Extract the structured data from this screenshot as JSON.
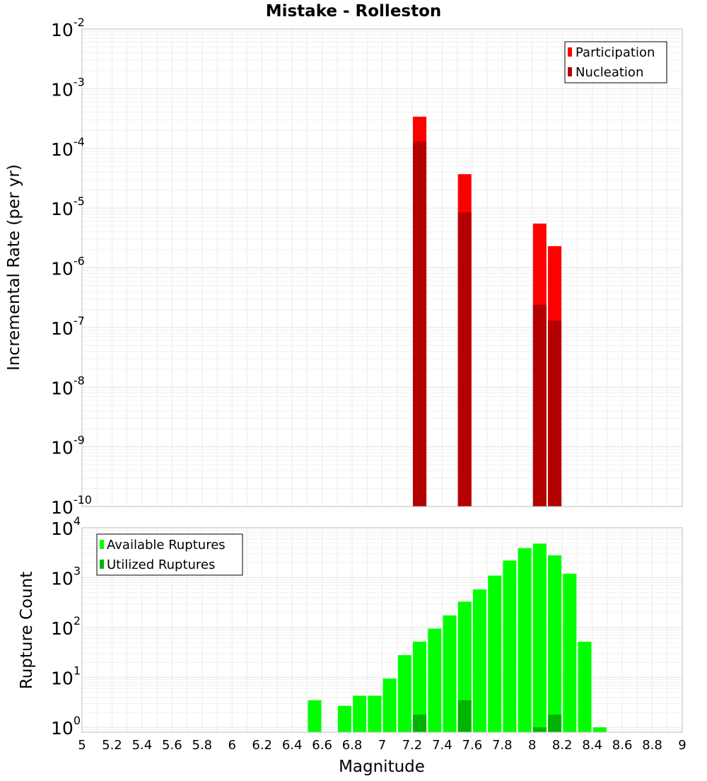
{
  "chart_data": [
    {
      "type": "bar",
      "title": "Mistake - Rolleston",
      "ylabel": "Incremental Rate (per yr)",
      "yscale": "log",
      "ylim": [
        1e-10,
        0.01
      ],
      "xlim": [
        5,
        9
      ],
      "grid": true,
      "legend_position": "top-right",
      "series": [
        {
          "name": "Participation",
          "color": "#ff0000",
          "x": [
            7.25,
            7.55,
            8.05,
            8.15
          ],
          "values": [
            0.00034,
            3.7e-05,
            5.5e-06,
            2.3e-06
          ]
        },
        {
          "name": "Nucleation",
          "color": "#b30000",
          "x": [
            7.25,
            7.55,
            8.05,
            8.15
          ],
          "values": [
            0.00013,
            8.5e-06,
            2.4e-07,
            1.3e-07
          ]
        }
      ]
    },
    {
      "type": "bar",
      "xlabel": "Magnitude",
      "ylabel": "Rupture Count",
      "yscale": "log",
      "ylim": [
        0.8,
        10000
      ],
      "xlim": [
        5,
        9
      ],
      "grid": true,
      "legend_position": "top-left",
      "series": [
        {
          "name": "Available Ruptures",
          "color": "#00ff00",
          "x": [
            6.55,
            6.75,
            6.85,
            6.95,
            7.05,
            7.15,
            7.25,
            7.35,
            7.45,
            7.55,
            7.65,
            7.75,
            7.85,
            7.95,
            8.05,
            8.15,
            8.25,
            8.35,
            8.45
          ],
          "values": [
            3.5,
            2.7,
            4.3,
            4.3,
            9.5,
            28,
            52,
            95,
            175,
            330,
            580,
            1100,
            2200,
            3900,
            4800,
            2800,
            1200,
            52,
            1
          ]
        },
        {
          "name": "Utilized Ruptures",
          "color": "#00b300",
          "x": [
            7.25,
            7.55,
            8.05,
            8.15
          ],
          "values": [
            1.8,
            3.5,
            1,
            1.8
          ]
        }
      ]
    }
  ],
  "x_ticks": [
    "5",
    "5.2",
    "5.4",
    "5.6",
    "5.8",
    "6",
    "6.2",
    "6.4",
    "6.6",
    "6.8",
    "7",
    "7.2",
    "7.4",
    "7.6",
    "7.8",
    "8",
    "8.2",
    "8.4",
    "8.6",
    "8.8",
    "9"
  ],
  "top_y_ticks": [
    {
      "base": "10",
      "exp": "-10"
    },
    {
      "base": "10",
      "exp": "-9"
    },
    {
      "base": "10",
      "exp": "-8"
    },
    {
      "base": "10",
      "exp": "-7"
    },
    {
      "base": "10",
      "exp": "-6"
    },
    {
      "base": "10",
      "exp": "-5"
    },
    {
      "base": "10",
      "exp": "-4"
    },
    {
      "base": "10",
      "exp": "-3"
    },
    {
      "base": "10",
      "exp": "-2"
    }
  ],
  "bottom_y_ticks": [
    {
      "base": "10",
      "exp": "0"
    },
    {
      "base": "10",
      "exp": "1"
    },
    {
      "base": "10",
      "exp": "2"
    },
    {
      "base": "10",
      "exp": "3"
    },
    {
      "base": "10",
      "exp": "4"
    }
  ]
}
